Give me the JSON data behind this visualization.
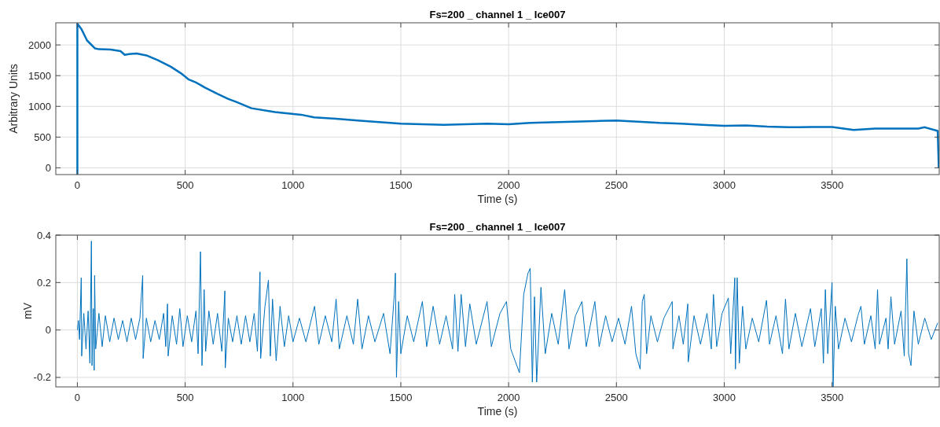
{
  "chart_data": [
    {
      "type": "line",
      "title": "Fs=200 _ channel 1 _  Ice007",
      "xlabel": "Time (s)",
      "ylabel": "Arbitrary Units",
      "color": "#0072bd",
      "grid": true,
      "xlim": [
        -100,
        3997
      ],
      "ylim": [
        -110,
        2360
      ],
      "xticks": [
        0,
        500,
        1000,
        1500,
        2000,
        2500,
        3000,
        3500
      ],
      "yticks": [
        0,
        500,
        1000,
        1500,
        2000
      ],
      "x": [
        0,
        0,
        20,
        45,
        81,
        100,
        154,
        200,
        220,
        240,
        275,
        320,
        372,
        432,
        480,
        517,
        550,
        590,
        650,
        700,
        735,
        807,
        916,
        1038,
        1098,
        1200,
        1300,
        1400,
        1500,
        1600,
        1700,
        1800,
        1900,
        2000,
        2100,
        2200,
        2300,
        2400,
        2500,
        2600,
        2700,
        2800,
        2900,
        3000,
        3100,
        3200,
        3300,
        3400,
        3500,
        3600,
        3700,
        3800,
        3900,
        3930,
        3990,
        3995
      ],
      "values": [
        -110,
        2347,
        2250,
        2072,
        1945,
        1930,
        1924,
        1900,
        1839,
        1850,
        1860,
        1830,
        1754,
        1648,
        1540,
        1436,
        1390,
        1309,
        1203,
        1120,
        1076,
        970,
        907,
        864,
        822,
        800,
        770,
        745,
        720,
        710,
        700,
        710,
        720,
        710,
        730,
        740,
        750,
        760,
        770,
        750,
        730,
        720,
        700,
        685,
        690,
        670,
        660,
        665,
        665,
        615,
        640,
        640,
        640,
        660,
        600,
        0
      ]
    },
    {
      "type": "line",
      "title": "Fs=200 _ channel 1 _  Ice007",
      "xlabel": "Time (s)",
      "ylabel": "mV",
      "color": "#0072bd",
      "grid": true,
      "xlim": [
        -100,
        3997
      ],
      "ylim": [
        -0.24,
        0.4
      ],
      "xticks": [
        0,
        500,
        1000,
        1500,
        2000,
        2500,
        3000,
        3500
      ],
      "yticks": [
        -0.2,
        0,
        0.2,
        0.4
      ],
      "x": [
        0,
        5,
        10,
        18,
        20,
        30,
        40,
        50,
        58,
        65,
        68,
        74,
        78,
        80,
        85,
        100,
        115,
        130,
        150,
        170,
        190,
        210,
        230,
        250,
        270,
        290,
        303,
        305,
        320,
        340,
        360,
        380,
        400,
        410,
        418,
        421,
        440,
        460,
        475,
        490,
        510,
        530,
        550,
        560,
        571,
        578,
        588,
        595,
        610,
        630,
        650,
        670,
        684,
        686,
        700,
        720,
        740,
        760,
        780,
        800,
        820,
        835,
        847,
        850,
        870,
        886,
        895,
        905,
        922,
        940,
        960,
        980,
        1000,
        1030,
        1060,
        1100,
        1120,
        1150,
        1180,
        1200,
        1215,
        1250,
        1280,
        1300,
        1320,
        1350,
        1380,
        1420,
        1450,
        1470,
        1475,
        1480,
        1490,
        1500,
        1530,
        1560,
        1600,
        1620,
        1650,
        1680,
        1710,
        1740,
        1750,
        1765,
        1780,
        1800,
        1820,
        1850,
        1900,
        1920,
        1960,
        1990,
        2010,
        2050,
        2070,
        2090,
        2100,
        2110,
        2120,
        2130,
        2150,
        2170,
        2200,
        2230,
        2260,
        2280,
        2310,
        2340,
        2360,
        2400,
        2420,
        2450,
        2480,
        2510,
        2540,
        2570,
        2590,
        2610,
        2620,
        2629,
        2640,
        2660,
        2690,
        2720,
        2759,
        2762,
        2790,
        2810,
        2831,
        2833,
        2860,
        2890,
        2920,
        2940,
        2950,
        2965,
        2990,
        3019,
        3030,
        3049,
        3052,
        3060,
        3070,
        3085,
        3100,
        3130,
        3160,
        3196,
        3210,
        3240,
        3270,
        3284,
        3300,
        3330,
        3360,
        3400,
        3420,
        3450,
        3460,
        3469,
        3480,
        3500,
        3505,
        3515,
        3530,
        3560,
        3590,
        3620,
        3634,
        3650,
        3680,
        3700,
        3711,
        3720,
        3750,
        3760,
        3773,
        3790,
        3820,
        3835,
        3847,
        3855,
        3866,
        3880,
        3900,
        3930,
        3960,
        3990
      ],
      "values": [
        0,
        0.04,
        -0.04,
        0.22,
        -0.11,
        0.07,
        -0.08,
        0.08,
        -0.14,
        0.375,
        -0.15,
        0.09,
        -0.17,
        0.23,
        -0.08,
        0.07,
        -0.07,
        0.06,
        -0.05,
        0.05,
        -0.04,
        0.04,
        -0.05,
        0.05,
        -0.04,
        0.05,
        0.23,
        -0.12,
        0.05,
        -0.05,
        0.04,
        -0.04,
        0.07,
        -0.07,
        0.11,
        -0.11,
        0.06,
        -0.06,
        0.09,
        -0.07,
        0.06,
        -0.05,
        0.08,
        -0.1,
        0.33,
        -0.15,
        0.17,
        -0.09,
        0.08,
        -0.06,
        0.07,
        -0.09,
        0.165,
        -0.16,
        0.05,
        -0.05,
        0.06,
        -0.06,
        0.06,
        -0.05,
        0.07,
        -0.09,
        0.245,
        -0.12,
        0.1,
        0.21,
        -0.11,
        0.13,
        -0.13,
        0.1,
        -0.07,
        0.06,
        -0.05,
        0.05,
        -0.05,
        0.1,
        -0.06,
        0.06,
        -0.05,
        0.13,
        -0.08,
        0.06,
        -0.06,
        0.13,
        -0.08,
        0.06,
        -0.05,
        0.07,
        -0.1,
        0.15,
        0.24,
        -0.2,
        0.12,
        -0.1,
        0.06,
        -0.05,
        0.12,
        -0.07,
        0.1,
        -0.06,
        0.06,
        -0.08,
        0.15,
        -0.09,
        0.15,
        -0.07,
        0.11,
        -0.06,
        0.12,
        -0.07,
        0.07,
        0.12,
        -0.08,
        -0.18,
        0.15,
        0.24,
        0.26,
        -0.22,
        0.14,
        -0.22,
        0.18,
        -0.1,
        0.07,
        -0.06,
        0.17,
        -0.08,
        0.06,
        0.12,
        -0.07,
        0.12,
        -0.07,
        0.06,
        -0.05,
        0.05,
        -0.06,
        0.1,
        -0.1,
        -0.165,
        0.12,
        0.15,
        -0.1,
        0.06,
        -0.05,
        0.05,
        0.12,
        -0.08,
        0.06,
        -0.06,
        0.11,
        -0.135,
        0.06,
        -0.06,
        0.07,
        -0.08,
        0.15,
        -0.07,
        0.07,
        0.135,
        -0.1,
        0.22,
        -0.165,
        0.22,
        -0.14,
        0.1,
        -0.08,
        0.05,
        -0.05,
        0.125,
        -0.06,
        0.06,
        -0.1,
        0.13,
        -0.08,
        0.07,
        -0.07,
        0.09,
        -0.07,
        0.09,
        -0.14,
        0.17,
        -0.1,
        0.2,
        -0.24,
        0.1,
        -0.08,
        0.05,
        -0.05,
        0.06,
        0.1,
        -0.06,
        0.06,
        -0.08,
        0.17,
        -0.06,
        0.05,
        -0.08,
        0.14,
        -0.06,
        0.08,
        -0.11,
        0.3,
        -0.1,
        -0.15,
        0.08,
        -0.06,
        0.05,
        -0.04,
        0.03
      ]
    }
  ]
}
